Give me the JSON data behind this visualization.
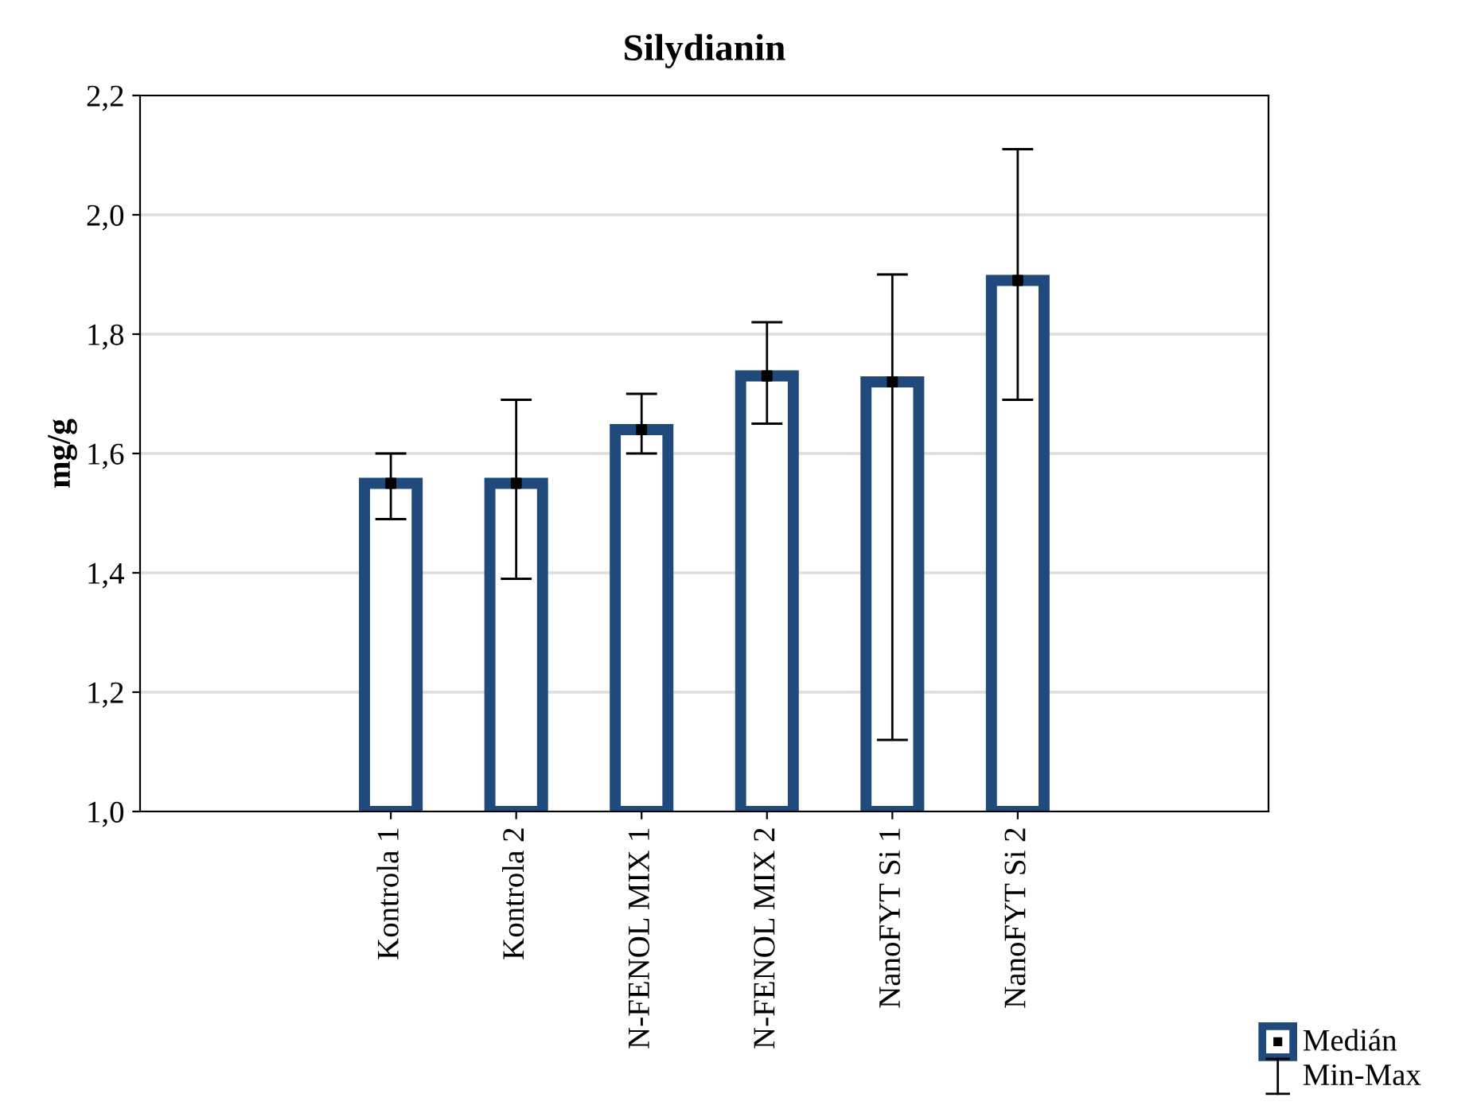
{
  "chart_data": {
    "type": "bar",
    "title": "Silydianin",
    "ylabel": "mg/g",
    "categories": [
      "Kontrola 1",
      "Kontrola 2",
      "N-FENOL MIX 1",
      "N-FENOL MIX 2",
      "NanoFYT Si 1",
      "NanoFYT Si 2"
    ],
    "series": [
      {
        "name": "Medián",
        "color": "#214a7c",
        "values": [
          1.55,
          1.55,
          1.64,
          1.73,
          1.72,
          1.89
        ],
        "errors": [
          [
            1.49,
            1.6
          ],
          [
            1.39,
            1.69
          ],
          [
            1.6,
            1.7
          ],
          [
            1.65,
            1.82
          ],
          [
            1.12,
            1.9
          ],
          [
            1.69,
            2.11
          ]
        ]
      },
      {
        "type": "scatter",
        "color": "#000000",
        "marker": "square",
        "values": [
          1.55,
          1.55,
          1.64,
          1.73,
          1.72,
          1.89
        ]
      }
    ],
    "annotations": [
      "Min-Max"
    ],
    "ylim": [
      1.0,
      2.2
    ],
    "yticks": [
      {
        "value": 1.0,
        "label": "1,0"
      },
      {
        "value": 1.2,
        "label": "1,2"
      },
      {
        "value": 1.4,
        "label": "1,4"
      },
      {
        "value": 1.6,
        "label": "1,6"
      },
      {
        "value": 1.8,
        "label": "1,8"
      },
      {
        "value": 2.0,
        "label": "2,0"
      },
      {
        "value": 2.2,
        "label": "2,2"
      }
    ],
    "grid": "y",
    "legend": "bottom right"
  }
}
